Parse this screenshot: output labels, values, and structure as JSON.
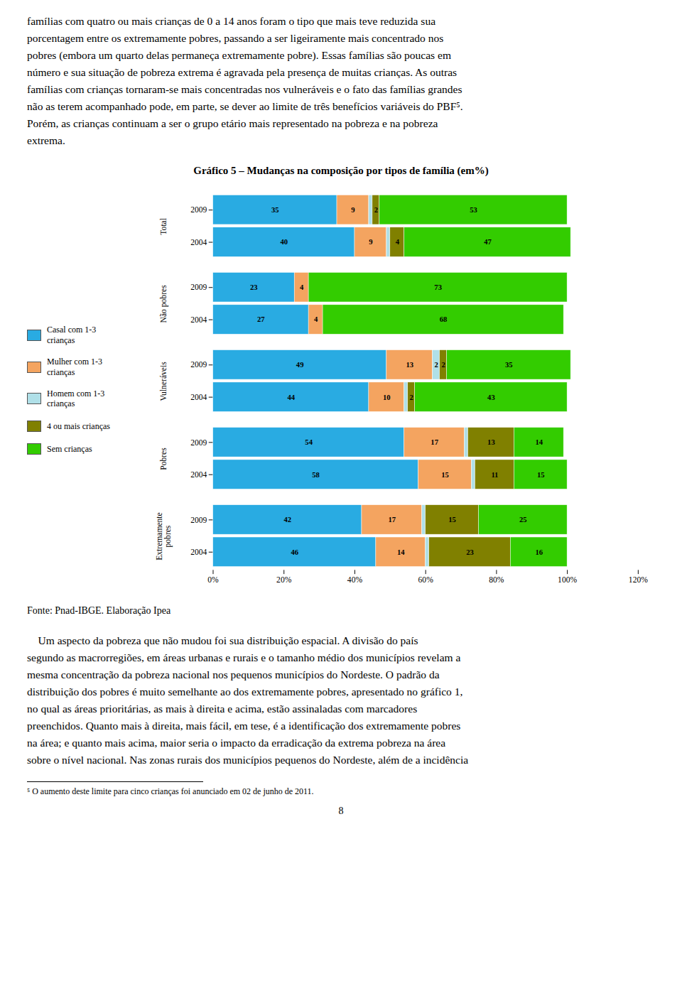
{
  "chart_data": {
    "type": "bar",
    "orientation": "horizontal",
    "stacked": true,
    "title": "Gráfico 5 – Mudanças na composição por tipos de família (em%)",
    "categories": [
      "Total",
      "Não pobres",
      "Vulneráveis",
      "Pobres",
      "Extremamente\npobres"
    ],
    "years": [
      "2009",
      "2004"
    ],
    "series": [
      {
        "name": "Casal com 1-3\ncrianças",
        "color": "#29ABE2",
        "values": [
          [
            35,
            40
          ],
          [
            23,
            27
          ],
          [
            49,
            44
          ],
          [
            54,
            58
          ],
          [
            42,
            46
          ]
        ],
        "value_labels": [
          [
            "35",
            "40"
          ],
          [
            "23",
            "27"
          ],
          [
            "49",
            "44"
          ],
          [
            "54",
            "58"
          ],
          [
            "42",
            "46"
          ]
        ]
      },
      {
        "name": "Mulher com 1-3\ncrianças",
        "color": "#F4A460",
        "values": [
          [
            9,
            9
          ],
          [
            4,
            4
          ],
          [
            13,
            10
          ],
          [
            17,
            15
          ],
          [
            17,
            14
          ]
        ],
        "value_labels": [
          [
            "9",
            "9"
          ],
          [
            "4",
            "4"
          ],
          [
            "13",
            "10"
          ],
          [
            "17",
            "15"
          ],
          [
            "17",
            "14"
          ]
        ]
      },
      {
        "name": "Homem com 1-3\ncrianças",
        "color": "#B0E0E8",
        "values": [
          [
            1,
            1
          ],
          [
            0,
            0
          ],
          [
            2,
            1
          ],
          [
            1,
            1
          ],
          [
            1,
            1
          ]
        ],
        "value_labels": [
          [
            null,
            null
          ],
          [
            null,
            null
          ],
          [
            "2",
            null
          ],
          [
            null,
            null
          ],
          [
            null,
            null
          ]
        ]
      },
      {
        "name": "4 ou mais crianças",
        "color": "#808000",
        "values": [
          [
            2,
            4
          ],
          [
            0,
            0
          ],
          [
            2,
            2
          ],
          [
            13,
            11
          ],
          [
            15,
            23
          ]
        ],
        "value_labels": [
          [
            "2",
            "4"
          ],
          [
            null,
            null
          ],
          [
            "2",
            "2"
          ],
          [
            "13",
            "11"
          ],
          [
            "15",
            "23"
          ]
        ]
      },
      {
        "name": "Sem crianças",
        "color": "#33CC00",
        "values": [
          [
            53,
            47
          ],
          [
            73,
            68
          ],
          [
            35,
            43
          ],
          [
            14,
            15
          ],
          [
            25,
            16
          ]
        ],
        "value_labels": [
          [
            "53",
            "47"
          ],
          [
            "73",
            "68"
          ],
          [
            "35",
            "43"
          ],
          [
            "14",
            "15"
          ],
          [
            "25",
            "16"
          ]
        ]
      }
    ],
    "xlim": [
      0,
      120
    ],
    "xticks": [
      {
        "value": 0,
        "label": "0%"
      },
      {
        "value": 20,
        "label": "20%"
      },
      {
        "value": 40,
        "label": "40%"
      },
      {
        "value": 60,
        "label": "60%"
      },
      {
        "value": 80,
        "label": "80%"
      },
      {
        "value": 100,
        "label": "100%"
      },
      {
        "value": 120,
        "label": "120%"
      }
    ],
    "grid": false,
    "legend": "left",
    "data_labels": true
  },
  "text_above": [
    "famílias com quatro ou mais crianças de 0 a 14 anos foram o tipo que mais teve reduzida sua",
    "porcentagem entre os extremamente pobres, passando a ser ligeiramente mais concentrado nos",
    "pobres (embora um quarto delas permaneça extremamente pobre). Essas famílias são poucas em",
    "número e sua situação de pobreza extrema é agravada pela presença de muitas crianças. As outras",
    "famílias com crianças tornaram-se mais concentradas nos vulneráveis e o fato das famílias grandes",
    "não as terem acompanhado pode, em parte, se dever ao limite de três benefícios variáveis do PBF⁵.",
    "Porém, as crianças continuam a ser o grupo etário mais representado na pobreza e na pobreza",
    "extrema."
  ],
  "source": "Fonte: Pnad-IBGE. Elaboração Ipea",
  "text_below": [
    "    Um aspecto da pobreza que não mudou foi sua distribuição espacial. A divisão do país",
    "segundo as macrorregiões, em áreas urbanas e rurais e o tamanho médio dos municípios revelam a",
    "mesma concentração da pobreza nacional nos pequenos municípios do Nordeste. O padrão da",
    "distribuição dos pobres é muito semelhante ao dos extremamente pobres, apresentado no gráfico 1,",
    "no qual as áreas prioritárias, as mais à direita e acima, estão assinaladas com marcadores",
    "preenchidos. Quanto mais à direita, mais fácil, em tese, é a identificação dos extremamente pobres",
    "na área; e quanto mais acima, maior seria o impacto da erradicação da extrema pobreza na área",
    "sobre o nível nacional. Nas zonas rurais dos municípios pequenos do Nordeste, além de a incidência"
  ],
  "footnote": "⁵ O aumento deste limite para cinco crianças foi anunciado em 02 de junho de 2011.",
  "page_number": "8"
}
